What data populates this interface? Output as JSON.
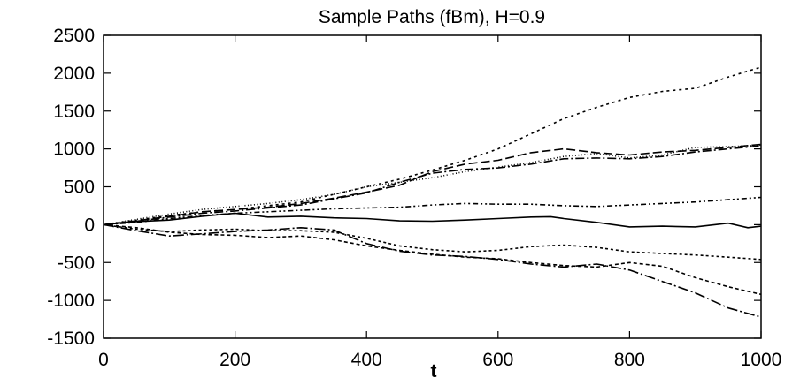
{
  "chart_data": {
    "type": "line",
    "title": "Sample Paths (fBm), H=0.9",
    "xlabel": "t",
    "ylabel": "",
    "xlim": [
      0,
      1000
    ],
    "ylim": [
      -1500,
      2500
    ],
    "xticks": [
      "0",
      "200",
      "400",
      "600",
      "800",
      "1000"
    ],
    "yticks": [
      "2500",
      "2000",
      "1500",
      "1000",
      "500",
      "0",
      "-500",
      "-1000",
      "-1500"
    ],
    "grid": false,
    "legend": "none",
    "series": [
      {
        "dash": "none",
        "x": [
          0,
          50,
          100,
          150,
          200,
          250,
          300,
          350,
          400,
          450,
          500,
          550,
          600,
          650,
          680,
          700,
          750,
          800,
          850,
          900,
          950,
          980,
          1000
        ],
        "y": [
          0,
          40,
          60,
          110,
          150,
          100,
          110,
          90,
          80,
          50,
          45,
          60,
          80,
          100,
          105,
          80,
          30,
          -30,
          -20,
          -30,
          20,
          -40,
          -20
        ]
      },
      {
        "dash": "3,4",
        "x": [
          0,
          50,
          100,
          150,
          200,
          250,
          300,
          350,
          400,
          450,
          500,
          550,
          600,
          650,
          700,
          750,
          800,
          850,
          900,
          950,
          1000
        ],
        "y": [
          0,
          60,
          120,
          170,
          200,
          250,
          300,
          400,
          500,
          600,
          720,
          850,
          1000,
          1200,
          1400,
          1550,
          1680,
          1760,
          1800,
          1950,
          2080
        ]
      },
      {
        "dash": "1,2.5",
        "x": [
          0,
          50,
          100,
          150,
          200,
          250,
          300,
          350,
          400,
          450,
          500,
          550,
          600,
          650,
          700,
          750,
          800,
          850,
          900,
          950,
          1000
        ],
        "y": [
          0,
          70,
          140,
          200,
          240,
          280,
          330,
          400,
          500,
          560,
          620,
          700,
          760,
          820,
          900,
          940,
          880,
          920,
          1020,
          1030,
          1050
        ]
      },
      {
        "dash": "10,4",
        "x": [
          0,
          50,
          100,
          150,
          200,
          250,
          300,
          350,
          400,
          450,
          500,
          550,
          600,
          650,
          700,
          750,
          800,
          850,
          900,
          950,
          1000
        ],
        "y": [
          0,
          50,
          110,
          170,
          200,
          230,
          280,
          350,
          430,
          520,
          700,
          800,
          850,
          950,
          1000,
          950,
          920,
          960,
          980,
          1020,
          1060
        ]
      },
      {
        "dash": "10,3,2,3",
        "x": [
          0,
          50,
          100,
          150,
          200,
          250,
          300,
          350,
          400,
          450,
          500,
          550,
          600,
          650,
          700,
          750,
          800,
          850,
          900,
          950,
          1000
        ],
        "y": [
          0,
          45,
          100,
          150,
          180,
          220,
          260,
          340,
          420,
          560,
          680,
          730,
          750,
          800,
          870,
          880,
          870,
          900,
          960,
          1000,
          1040
        ]
      },
      {
        "dash": "6,3,2,3,2,3",
        "x": [
          0,
          50,
          100,
          150,
          200,
          250,
          300,
          350,
          400,
          450,
          500,
          550,
          600,
          650,
          700,
          750,
          800,
          850,
          900,
          950,
          1000
        ],
        "y": [
          0,
          30,
          80,
          120,
          150,
          170,
          190,
          210,
          220,
          230,
          260,
          280,
          270,
          270,
          250,
          240,
          260,
          280,
          300,
          330,
          360
        ]
      },
      {
        "dash": "3,3",
        "x": [
          0,
          50,
          100,
          150,
          200,
          250,
          300,
          350,
          400,
          450,
          500,
          550,
          600,
          650,
          700,
          750,
          800,
          850,
          900,
          950,
          1000
        ],
        "y": [
          0,
          -60,
          -90,
          -70,
          -60,
          -80,
          -80,
          -100,
          -180,
          -280,
          -330,
          -360,
          -340,
          -290,
          -270,
          -300,
          -360,
          -380,
          -400,
          -430,
          -460
        ]
      },
      {
        "dash": "4,3",
        "x": [
          0,
          50,
          100,
          150,
          200,
          250,
          300,
          350,
          400,
          450,
          500,
          550,
          600,
          650,
          700,
          750,
          800,
          850,
          900,
          950,
          1000
        ],
        "y": [
          0,
          -40,
          -100,
          -130,
          -140,
          -170,
          -150,
          -200,
          -280,
          -340,
          -390,
          -430,
          -450,
          -500,
          -540,
          -560,
          -500,
          -550,
          -700,
          -820,
          -920
        ]
      },
      {
        "dash": "12,3,2,3",
        "x": [
          0,
          50,
          100,
          150,
          200,
          250,
          300,
          350,
          400,
          450,
          500,
          550,
          600,
          650,
          700,
          750,
          800,
          850,
          900,
          950,
          1000
        ],
        "y": [
          0,
          -80,
          -150,
          -120,
          -90,
          -70,
          -40,
          -70,
          -250,
          -350,
          -400,
          -420,
          -460,
          -520,
          -560,
          -520,
          -600,
          -750,
          -900,
          -1100,
          -1220
        ]
      }
    ]
  }
}
